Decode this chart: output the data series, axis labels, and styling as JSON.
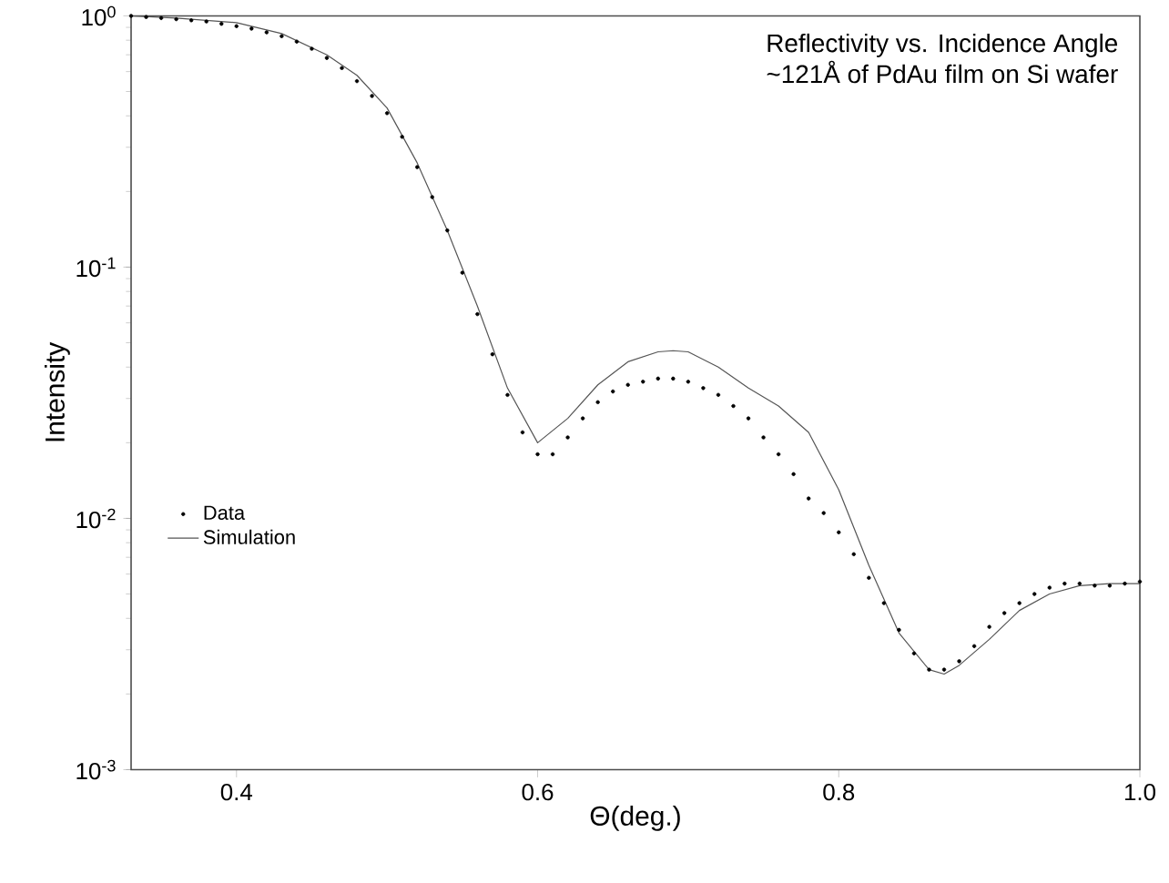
{
  "chart_data": {
    "type": "line",
    "title": "Reflectivity vs. Incidence Angle",
    "subtitle": "~121Å of PdAu film on Si wafer",
    "xlabel": "Θ(deg.)",
    "ylabel": "Intensity",
    "log": "y",
    "xlim": [
      0.33,
      1.0
    ],
    "ylim": [
      0.001,
      1
    ],
    "xticks": [
      0.4,
      0.6,
      0.8,
      {
        "value": 1.0,
        "label": "1.0"
      }
    ],
    "yticks": [
      {
        "value": 0.001,
        "label": "10$^{-3}$"
      },
      {
        "value": 0.01,
        "label": "10$^{-2}$"
      },
      {
        "value": 0.1,
        "label": "10$^{-1}$"
      },
      {
        "value": 1,
        "label": "10$^{0}$"
      }
    ],
    "legend": "left",
    "grid": false,
    "series": [
      {
        "name": "Data",
        "type": "scatter",
        "marker": "circle",
        "color": "#000000",
        "x": [
          0.33,
          0.34,
          0.35,
          0.36,
          0.37,
          0.38,
          0.39,
          0.4,
          0.41,
          0.42,
          0.43,
          0.44,
          0.45,
          0.46,
          0.47,
          0.48,
          0.49,
          0.5,
          0.51,
          0.52,
          0.53,
          0.54,
          0.55,
          0.56,
          0.57,
          0.58,
          0.59,
          0.6,
          0.61,
          0.62,
          0.63,
          0.64,
          0.65,
          0.66,
          0.67,
          0.68,
          0.69,
          0.7,
          0.71,
          0.72,
          0.73,
          0.74,
          0.75,
          0.76,
          0.77,
          0.78,
          0.79,
          0.8,
          0.81,
          0.82,
          0.83,
          0.84,
          0.85,
          0.86,
          0.87,
          0.88,
          0.89,
          0.9,
          0.91,
          0.92,
          0.93,
          0.94,
          0.95,
          0.96,
          0.97,
          0.98,
          0.99,
          1.0
        ],
        "values": [
          1.0,
          0.99,
          0.98,
          0.97,
          0.96,
          0.95,
          0.93,
          0.91,
          0.89,
          0.86,
          0.83,
          0.79,
          0.74,
          0.68,
          0.62,
          0.55,
          0.48,
          0.41,
          0.33,
          0.25,
          0.19,
          0.14,
          0.095,
          0.065,
          0.045,
          0.031,
          0.022,
          0.018,
          0.018,
          0.021,
          0.025,
          0.029,
          0.032,
          0.034,
          0.035,
          0.036,
          0.036,
          0.035,
          0.033,
          0.031,
          0.028,
          0.025,
          0.021,
          0.018,
          0.015,
          0.012,
          0.0105,
          0.0088,
          0.0072,
          0.0058,
          0.0046,
          0.0036,
          0.0029,
          0.0025,
          0.0025,
          0.0027,
          0.0031,
          0.0037,
          0.0042,
          0.0046,
          0.005,
          0.0053,
          0.0055,
          0.0055,
          0.0054,
          0.0054,
          0.0055,
          0.0056
        ]
      },
      {
        "name": "Simulation",
        "marker": "none",
        "color": "#555555",
        "x": [
          0.33,
          0.36,
          0.4,
          0.43,
          0.46,
          0.48,
          0.5,
          0.52,
          0.54,
          0.56,
          0.58,
          0.6,
          0.62,
          0.64,
          0.66,
          0.68,
          0.69,
          0.7,
          0.72,
          0.74,
          0.76,
          0.78,
          0.8,
          0.82,
          0.84,
          0.86,
          0.87,
          0.88,
          0.9,
          0.92,
          0.94,
          0.96,
          0.98,
          1.0
        ],
        "values": [
          1.0,
          0.98,
          0.94,
          0.85,
          0.7,
          0.58,
          0.43,
          0.26,
          0.14,
          0.07,
          0.033,
          0.02,
          0.025,
          0.034,
          0.042,
          0.046,
          0.0465,
          0.046,
          0.04,
          0.033,
          0.028,
          0.022,
          0.013,
          0.0065,
          0.0035,
          0.0025,
          0.0024,
          0.0026,
          0.0033,
          0.0043,
          0.005,
          0.0054,
          0.0055,
          0.0055
        ]
      }
    ]
  }
}
